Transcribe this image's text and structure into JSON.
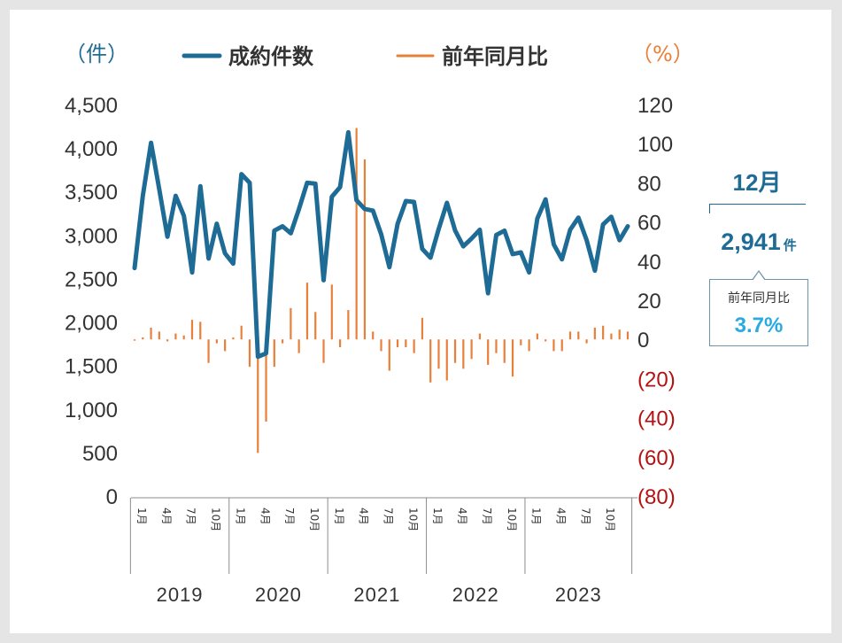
{
  "chart_data": {
    "type": "bar+line",
    "left_axis": {
      "unit_label": "（件）",
      "ticks": [
        "4,500",
        "4,000",
        "3,500",
        "3,000",
        "2,500",
        "2,000",
        "1,500",
        "1,000",
        "500",
        "0"
      ],
      "ylim": [
        0,
        4500
      ]
    },
    "right_axis": {
      "unit_label": "（%）",
      "ticks": [
        "120",
        "100",
        "80",
        "60",
        "40",
        "20",
        "0",
        "(20)",
        "(40)",
        "(60)",
        "(80)"
      ],
      "ylim": [
        -80,
        120
      ]
    },
    "legend": [
      {
        "label": "成約件数",
        "color": "#1e6c96"
      },
      {
        "label": "前年同月比",
        "color": "#e9803a"
      }
    ],
    "years": [
      "2019",
      "2020",
      "2021",
      "2022",
      "2023"
    ],
    "month_ticks": [
      "1月",
      "4月",
      "7月",
      "10月"
    ],
    "series": [
      {
        "name": "成約件数",
        "type": "line",
        "axis": "left",
        "color": "#1e6c96",
        "values": [
          2620,
          3450,
          4060,
          3530,
          2980,
          3450,
          3220,
          2570,
          3560,
          2730,
          3130,
          2790,
          2670,
          3700,
          3600,
          1600,
          1640,
          3050,
          3100,
          3020,
          3300,
          3600,
          3590,
          2480,
          3440,
          3550,
          4180,
          3400,
          3300,
          3280,
          3010,
          2630,
          3130,
          3390,
          3380,
          2840,
          2740,
          3070,
          3370,
          3050,
          2870,
          2960,
          3060,
          2330,
          3000,
          3050,
          2780,
          2800,
          2570,
          3190,
          3410,
          2890,
          2720,
          3060,
          3200,
          2940,
          2590,
          3120,
          3210,
          2940,
          3100
        ]
      },
      {
        "name": "前年同月比",
        "type": "bar",
        "axis": "right",
        "color": "#e9803a",
        "values": [
          0,
          1,
          6,
          4,
          -1,
          3,
          2,
          10,
          9,
          -12,
          -2,
          -6,
          1,
          7,
          -14,
          -58,
          -42,
          -14,
          -2,
          16,
          -7,
          29,
          14,
          -12,
          28,
          -4,
          15,
          108,
          92,
          4,
          -6,
          -16,
          -4,
          -4,
          -7,
          11,
          -22,
          -15,
          -21,
          -12,
          -15,
          -10,
          3,
          -13,
          -7,
          -12,
          -19,
          -3,
          -6,
          3,
          -1,
          -6,
          -6,
          4,
          4,
          -2,
          6,
          7,
          3,
          5,
          4
        ]
      }
    ]
  },
  "callout": {
    "month": "12月",
    "count_value": "2,941",
    "count_unit": "件",
    "yoy_label": "前年同月比",
    "yoy_value": "3.7%"
  }
}
